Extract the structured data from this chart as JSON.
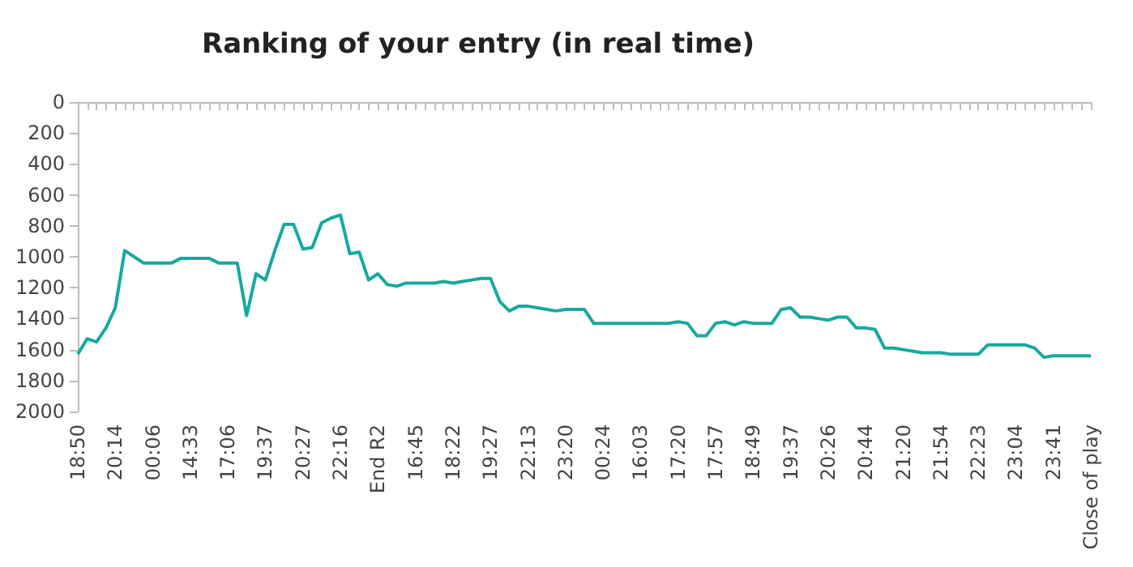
{
  "chart_data": {
    "type": "line",
    "title": "Ranking of your entry (in real time)",
    "categories": [
      "18:50",
      null,
      null,
      null,
      "20:14",
      null,
      null,
      null,
      "00:06",
      null,
      null,
      null,
      "14:33",
      null,
      null,
      null,
      "17:06",
      null,
      null,
      null,
      "19:37",
      null,
      null,
      null,
      "20:27",
      null,
      null,
      null,
      "22:16",
      null,
      null,
      null,
      "End R2",
      null,
      null,
      null,
      "16:45",
      null,
      null,
      null,
      "18:22",
      null,
      null,
      null,
      "19:27",
      null,
      null,
      null,
      "22:13",
      null,
      null,
      null,
      "23:20",
      null,
      null,
      null,
      "00:24",
      null,
      null,
      null,
      "16:03",
      null,
      null,
      null,
      "17:20",
      null,
      null,
      null,
      "17:57",
      null,
      null,
      null,
      "18:49",
      null,
      null,
      null,
      "19:37",
      null,
      null,
      null,
      "20:26",
      null,
      null,
      null,
      "20:44",
      null,
      null,
      null,
      "21:20",
      null,
      null,
      null,
      "21:54",
      null,
      null,
      null,
      "22:23",
      null,
      null,
      null,
      "23:04",
      null,
      null,
      null,
      "23:41",
      null,
      null,
      null,
      "Close of play"
    ],
    "series": [
      {
        "color": "#17a99f",
        "values": [
          1630,
          1530,
          1550,
          1460,
          1330,
          960,
          1000,
          1040,
          1040,
          1040,
          1040,
          1010,
          1010,
          1010,
          1010,
          1040,
          1040,
          1040,
          1380,
          1110,
          1150,
          960,
          790,
          790,
          950,
          940,
          780,
          750,
          730,
          980,
          970,
          1150,
          1110,
          1180,
          1190,
          1170,
          1170,
          1170,
          1170,
          1160,
          1170,
          1160,
          1150,
          1140,
          1140,
          1290,
          1350,
          1320,
          1320,
          1330,
          1340,
          1350,
          1340,
          1340,
          1340,
          1430,
          1430,
          1430,
          1430,
          1430,
          1430,
          1430,
          1430,
          1430,
          1420,
          1430,
          1510,
          1510,
          1430,
          1420,
          1440,
          1420,
          1430,
          1430,
          1430,
          1340,
          1330,
          1390,
          1390,
          1400,
          1410,
          1390,
          1390,
          1460,
          1460,
          1470,
          1590,
          1590,
          1600,
          1610,
          1620,
          1620,
          1620,
          1630,
          1630,
          1630,
          1630,
          1570,
          1570,
          1570,
          1570,
          1570,
          1590,
          1650,
          1640,
          1640,
          1640,
          1640,
          1640
        ]
      }
    ],
    "ylim": [
      2000,
      0
    ],
    "yticks": [
      0,
      200,
      400,
      600,
      800,
      1000,
      1200,
      1400,
      1600,
      1800,
      2000
    ],
    "grid": false,
    "marker": "none",
    "line_style": "solid"
  }
}
